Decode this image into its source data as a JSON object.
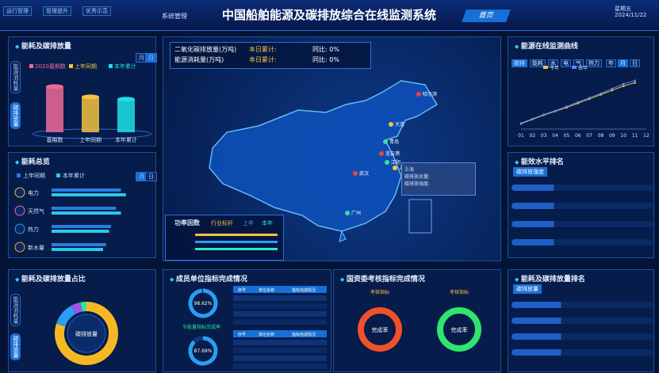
{
  "header": {
    "nav": [
      "运行管理",
      "管理提升",
      "优秀示范"
    ],
    "system": "系统管理",
    "title": "中国船舶能源及碳排放综合在线监测系统",
    "home": "首页",
    "weekday": "星期五",
    "date": "2024/11/22"
  },
  "emission_panel": {
    "title": "能耗及碳排放量",
    "tabs": [
      "月",
      "日"
    ],
    "side_tabs": [
      "能源消耗量",
      "碳排放量"
    ]
  },
  "overview_panel": {
    "title": "能耗总览",
    "tabs": [
      "月",
      "日"
    ]
  },
  "summary": {
    "rows": [
      {
        "name": "二氧化碳排放量(万吨)",
        "total": "本日累计:",
        "yoy": "同比: 0%"
      },
      {
        "name": "能源消耗量(万吨)",
        "total": "本日累计:",
        "yoy": "同比: 0%"
      }
    ]
  },
  "map": {
    "cities": [
      "哈尔滨",
      "大连",
      "青岛",
      "连云港",
      "江阴",
      "上海",
      "武汉",
      "广州"
    ],
    "tooltip": {
      "city": "上海",
      "total": "碳排放总量:",
      "intensity": "碳排放强度:"
    }
  },
  "power_factor": {
    "title": "功率因数",
    "legend": [
      "行业标杆",
      "上年",
      "本年"
    ]
  },
  "monitor_panel": {
    "title": "能源在线监测曲线",
    "tabs": [
      "碳排",
      "能耗",
      "水",
      "电",
      "气",
      "热力"
    ],
    "period_tabs": [
      "年",
      "月",
      "日"
    ]
  },
  "efficiency_panel": {
    "title": "能效水平排名",
    "tab": "碳排放强度"
  },
  "share_panel": {
    "title": "能耗及碳排放量占比",
    "side_tabs": [
      "能源消耗量",
      "碳排放量"
    ]
  },
  "members_panel": {
    "title": "成员单位指标完成情况",
    "rates": [
      {
        "value": 98.62,
        "label": "98.62%"
      },
      {
        "value": 87.69,
        "label": "87.69%"
      }
    ],
    "rate_name": "节能量指标完成率",
    "table_header": [
      "序号",
      "单位名称",
      "指标完成情况"
    ]
  },
  "sasac_panel": {
    "title": "国资委考核指标完成情况",
    "gauges": [
      {
        "name": "考核指标",
        "center": "完成率"
      },
      {
        "name": "考核指标",
        "center": "完成率"
      }
    ]
  },
  "ranking_panel": {
    "title": "能耗及碳排放量排名",
    "tab": "碳排放量"
  },
  "chart_data": [
    {
      "type": "bar",
      "series": [
        {
          "name": "2020基期数",
          "color": "#f06a9a"
        },
        {
          "name": "上年同期",
          "color": "#f5c242"
        },
        {
          "name": "本年累计",
          "color": "#1ee0e8"
        }
      ],
      "categories": [
        "基期数",
        "上年同期",
        "本年累计"
      ],
      "values": [
        80,
        62,
        58
      ],
      "ylim": [
        0,
        100
      ]
    },
    {
      "type": "line",
      "categories": [
        "01",
        "02",
        "03",
        "04",
        "05",
        "06",
        "07",
        "08",
        "09",
        "10",
        "11",
        "12"
      ],
      "series": [
        {
          "name": "今年",
          "color": "#f5c242",
          "values": [
            10,
            18,
            26,
            33,
            40,
            48,
            56,
            64,
            72,
            80,
            86,
            null
          ]
        },
        {
          "name": "去年",
          "color": "#5a8cff",
          "values": [
            11,
            19,
            27,
            34,
            42,
            50,
            58,
            66,
            75,
            84,
            90,
            null
          ]
        }
      ],
      "ylim": [
        0,
        100
      ]
    },
    {
      "type": "barh",
      "categories": [
        "电力",
        "天然气",
        "热力",
        "新水量"
      ],
      "series": [
        {
          "name": "上年同期",
          "color": "#2a7de1",
          "values": [
            70,
            65,
            60,
            55
          ]
        },
        {
          "name": "本年累计",
          "color": "#27c9e8",
          "values": [
            75,
            70,
            58,
            52
          ]
        }
      ],
      "xlim": [
        0,
        100
      ]
    },
    {
      "type": "pie",
      "values": [
        80,
        12,
        5,
        3
      ],
      "colors": [
        "#f5b824",
        "#2a9df4",
        "#a052e8",
        "#2ee59d"
      ],
      "center_label": "碳排放量"
    }
  ]
}
